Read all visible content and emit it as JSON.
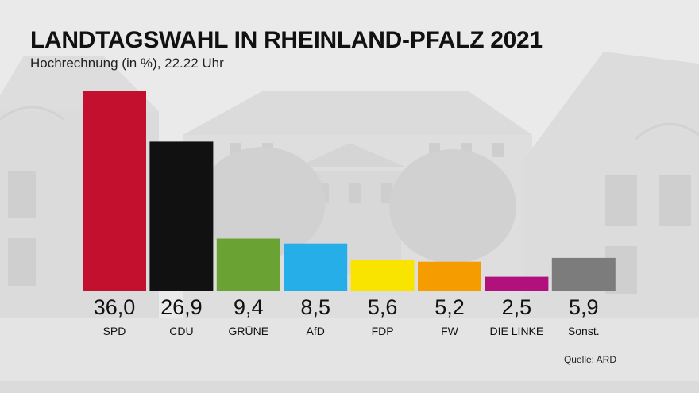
{
  "title": "LANDTAGSWAHL IN RHEINLAND-PFALZ 2021",
  "subtitle": "Hochrechnung (in %), 22.22 Uhr",
  "source": "Quelle: ARD",
  "chart_data": {
    "type": "bar",
    "categories": [
      "SPD",
      "CDU",
      "GRÜNE",
      "AfD",
      "FDP",
      "FW",
      "DIE LINKE",
      "Sonst."
    ],
    "values": [
      36.0,
      26.9,
      9.4,
      8.5,
      5.6,
      5.2,
      2.5,
      5.9
    ],
    "value_labels": [
      "36,0",
      "26,9",
      "9,4",
      "8,5",
      "5,6",
      "5,2",
      "2,5",
      "5,9"
    ],
    "colors": [
      "#c3102f",
      "#111111",
      "#6aa334",
      "#25aee8",
      "#f9e400",
      "#f49c00",
      "#b0117d",
      "#7c7c7c"
    ],
    "title": "LANDTAGSWAHL IN RHEINLAND-PFALZ 2021",
    "subtitle": "Hochrechnung (in %), 22.22 Uhr",
    "xlabel": "",
    "ylabel": "",
    "ylim": [
      0,
      36.0
    ],
    "grid": false
  }
}
